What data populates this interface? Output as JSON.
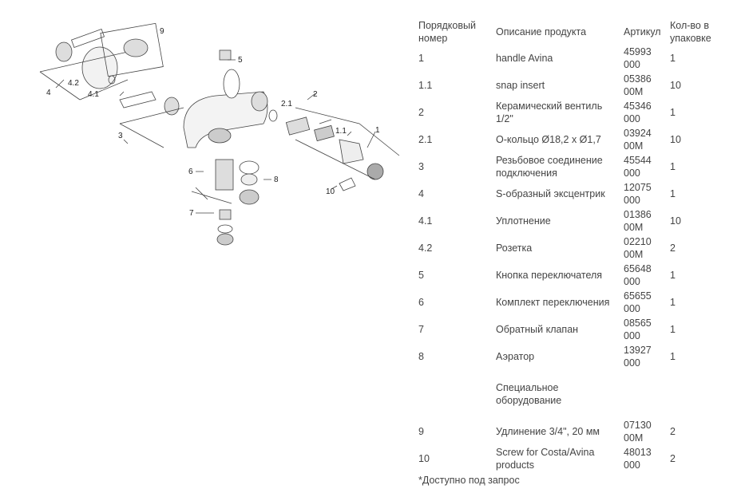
{
  "diagram": {
    "labels": [
      "9",
      "5",
      "2",
      "2.1",
      "1.1",
      "1",
      "4",
      "4.2",
      "4.1",
      "3",
      "6",
      "8",
      "10",
      "7"
    ]
  },
  "table": {
    "headers": [
      "Порядковый номер",
      "Описание продукта",
      "Артикул",
      "Кол-во в упаковке"
    ],
    "rows": [
      {
        "num": "1",
        "desc": "handle Avina",
        "article": "45993 000",
        "qty": "1"
      },
      {
        "num": "1.1",
        "desc": "snap insert",
        "article": "05386 00M",
        "qty": "10"
      },
      {
        "num": "2",
        "desc": "Керамический вентиль 1/2\"",
        "article": "45346 000",
        "qty": "1"
      },
      {
        "num": "2.1",
        "desc": "О-кольцо Ø18,2 x Ø1,7",
        "article": "03924 00M",
        "qty": "10"
      },
      {
        "num": "3",
        "desc": "Резьбовое соединение подключения",
        "article": "45544 000",
        "qty": "1"
      },
      {
        "num": "4",
        "desc": "S-образный эксцентрик",
        "article": "12075 000",
        "qty": "1"
      },
      {
        "num": "4.1",
        "desc": "Уплотнение",
        "article": "01386 00M",
        "qty": "10"
      },
      {
        "num": "4.2",
        "desc": "Розетка",
        "article": "02210 00M",
        "qty": "2"
      },
      {
        "num": "5",
        "desc": "Кнопка переключателя",
        "article": "65648 000",
        "qty": "1"
      },
      {
        "num": "6",
        "desc": "Комплект переключения",
        "article": "65655 000",
        "qty": "1"
      },
      {
        "num": "7",
        "desc": "Обратный клапан",
        "article": "08565 000",
        "qty": "1"
      },
      {
        "num": "8",
        "desc": "Аэратор",
        "article": "13927 000",
        "qty": "1"
      }
    ],
    "section": "Специальное оборудование",
    "special_rows": [
      {
        "num": "9",
        "desc": "Удлинение 3/4\", 20 мм",
        "article": "07130 00M",
        "qty": "2"
      },
      {
        "num": "10",
        "desc": "Screw for Costa/Avina products",
        "article": "48013 000",
        "qty": "2"
      }
    ],
    "footnote": "*Доступно под запрос"
  }
}
